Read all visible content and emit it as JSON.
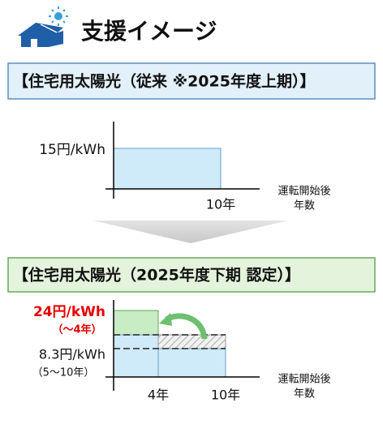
{
  "header": {
    "title": "支援イメージ"
  },
  "panel_before": {
    "heading": "【住宅用太陽光（従来 ※2025年度上期）】",
    "rate_label": "15円/kWh",
    "period_end_label": "10年",
    "x_axis_label_line1": "運転開始後",
    "x_axis_label_line2": "年数"
  },
  "panel_after": {
    "heading": "【住宅用太陽光（2025年度下期 認定）】",
    "early_rate_label": "24円/kWh",
    "early_period_label": "（～4年）",
    "late_rate_label": "8.3円/kWh",
    "late_period_label": "（5～10年）",
    "switch_label": "4年",
    "period_end_label": "10年",
    "x_axis_label_line1": "運転開始後",
    "x_axis_label_line2": "年数"
  }
}
